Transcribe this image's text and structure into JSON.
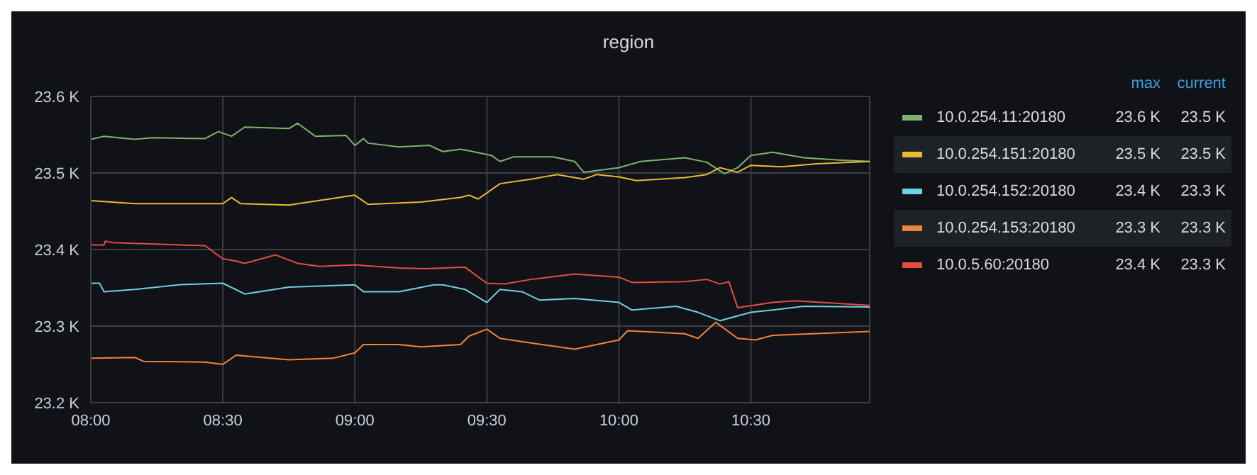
{
  "chart_data": {
    "type": "line",
    "title": "region",
    "legend": "right",
    "grid": true,
    "marker": "none",
    "line_style": "solid",
    "xlim": [
      8,
      10.95
    ],
    "xticks": [
      {
        "value": 8,
        "label": "08:00"
      },
      {
        "value": 8.5,
        "label": "08:30"
      },
      {
        "value": 9,
        "label": "09:00"
      },
      {
        "value": 9.5,
        "label": "09:30"
      },
      {
        "value": 10,
        "label": "10:00"
      },
      {
        "value": 10.5,
        "label": "10:30"
      }
    ],
    "ylim": [
      23.2,
      23.6
    ],
    "yticks": [
      {
        "value": 23.2,
        "label": "23.2 K"
      },
      {
        "value": 23.3,
        "label": "23.3 K"
      },
      {
        "value": 23.4,
        "label": "23.4 K"
      },
      {
        "value": 23.5,
        "label": "23.5 K"
      },
      {
        "value": 23.6,
        "label": "23.6 K"
      }
    ],
    "annotations": [
      "max",
      "current",
      "23.6 K",
      "23.5 K",
      "23.5 K",
      "23.5 K",
      "23.4 K",
      "23.3 K",
      "23.3 K",
      "23.3 K",
      "23.4 K",
      "23.3 K"
    ],
    "series": [
      {
        "name": "10.0.254.11:20180",
        "color": "#7eb26d",
        "x": [
          8,
          8.05,
          8.167,
          8.233,
          8.433,
          8.483,
          8.533,
          8.583,
          8.75,
          8.783,
          8.85,
          8.967,
          9,
          9.033,
          9.05,
          9.167,
          9.283,
          9.333,
          9.4,
          9.433,
          9.517,
          9.55,
          9.6,
          9.75,
          9.833,
          9.867,
          10,
          10.083,
          10.25,
          10.333,
          10.4,
          10.45,
          10.5,
          10.583,
          10.7,
          10.833,
          10.95
        ],
        "values": [
          23.544,
          23.548,
          23.544,
          23.546,
          23.545,
          23.554,
          23.548,
          23.56,
          23.558,
          23.565,
          23.548,
          23.549,
          23.536,
          23.545,
          23.539,
          23.534,
          23.536,
          23.528,
          23.531,
          23.529,
          23.523,
          23.515,
          23.521,
          23.521,
          23.515,
          23.501,
          23.507,
          23.515,
          23.52,
          23.514,
          23.499,
          23.507,
          23.523,
          23.527,
          23.52,
          23.517,
          23.515
        ]
      },
      {
        "name": "10.0.254.151:20180",
        "color": "#eab839",
        "x": [
          8,
          8.167,
          8.5,
          8.533,
          8.567,
          8.75,
          9,
          9.05,
          9.25,
          9.4,
          9.433,
          9.467,
          9.55,
          9.667,
          9.767,
          9.867,
          9.917,
          10,
          10.067,
          10.25,
          10.333,
          10.383,
          10.45,
          10.5,
          10.617,
          10.75,
          10.95
        ],
        "values": [
          23.464,
          23.46,
          23.46,
          23.468,
          23.46,
          23.458,
          23.471,
          23.459,
          23.462,
          23.468,
          23.471,
          23.466,
          23.486,
          23.492,
          23.498,
          23.492,
          23.498,
          23.495,
          23.49,
          23.494,
          23.498,
          23.507,
          23.501,
          23.51,
          23.508,
          23.512,
          23.515
        ]
      },
      {
        "name": "10.0.254.152:20180",
        "color": "#6ed0e0",
        "x": [
          8,
          8.033,
          8.05,
          8.167,
          8.333,
          8.5,
          8.583,
          8.75,
          9,
          9.033,
          9.167,
          9.3,
          9.333,
          9.417,
          9.5,
          9.55,
          9.633,
          9.7,
          9.833,
          10,
          10.05,
          10.217,
          10.3,
          10.383,
          10.5,
          10.583,
          10.7,
          10.95
        ],
        "values": [
          23.356,
          23.356,
          23.345,
          23.348,
          23.354,
          23.356,
          23.342,
          23.351,
          23.354,
          23.345,
          23.345,
          23.354,
          23.354,
          23.348,
          23.331,
          23.348,
          23.345,
          23.334,
          23.336,
          23.331,
          23.321,
          23.326,
          23.318,
          23.307,
          23.318,
          23.321,
          23.326,
          23.325
        ]
      },
      {
        "name": "10.0.254.153:20180",
        "color": "#ef843c",
        "x": [
          8,
          8.167,
          8.2,
          8.433,
          8.5,
          8.55,
          8.75,
          8.917,
          9,
          9.033,
          9.167,
          9.25,
          9.4,
          9.433,
          9.5,
          9.55,
          9.667,
          9.833,
          10,
          10.033,
          10.25,
          10.3,
          10.367,
          10.45,
          10.517,
          10.583,
          10.95
        ],
        "values": [
          23.258,
          23.259,
          23.254,
          23.253,
          23.25,
          23.262,
          23.256,
          23.258,
          23.265,
          23.276,
          23.276,
          23.273,
          23.276,
          23.287,
          23.296,
          23.284,
          23.278,
          23.27,
          23.282,
          23.294,
          23.29,
          23.284,
          23.305,
          23.284,
          23.282,
          23.288,
          23.293
        ]
      },
      {
        "name": "10.0.5.60:20180",
        "color": "#e24d42",
        "x": [
          8,
          8.05,
          8.055,
          8.083,
          8.433,
          8.5,
          8.55,
          8.583,
          8.7,
          8.783,
          8.867,
          9,
          9.167,
          9.267,
          9.417,
          9.5,
          9.567,
          9.667,
          9.833,
          10,
          10.05,
          10.25,
          10.333,
          10.383,
          10.417,
          10.45,
          10.583,
          10.667,
          10.95
        ],
        "values": [
          23.406,
          23.406,
          23.411,
          23.409,
          23.405,
          23.388,
          23.385,
          23.382,
          23.393,
          23.382,
          23.378,
          23.38,
          23.376,
          23.375,
          23.377,
          23.356,
          23.355,
          23.361,
          23.368,
          23.364,
          23.357,
          23.358,
          23.361,
          23.355,
          23.358,
          23.324,
          23.331,
          23.333,
          23.327
        ]
      }
    ]
  }
}
